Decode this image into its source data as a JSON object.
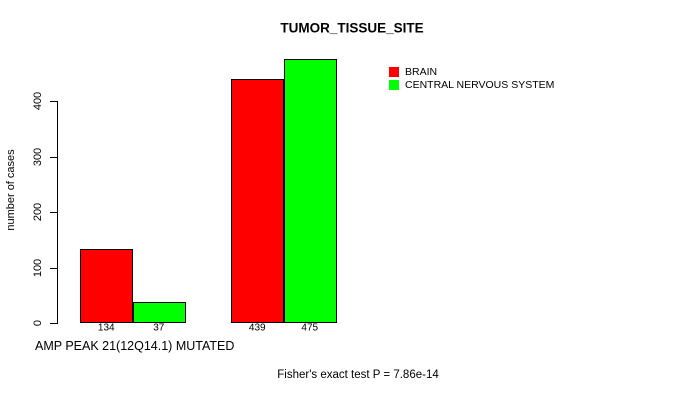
{
  "chart_data": {
    "type": "bar",
    "title": "TUMOR_TISSUE_SITE",
    "ylabel": "number of cases",
    "xlabel": "AMP PEAK 21(12Q14.1) MUTATED",
    "annotation": "Fisher's exact test P = 7.86e-14",
    "series": [
      {
        "name": "BRAIN",
        "color": "#ff0000",
        "values": [
          134,
          439
        ]
      },
      {
        "name": "CENTRAL NERVOUS SYSTEM",
        "color": "#00ff00",
        "values": [
          37,
          475
        ]
      }
    ],
    "bar_value_labels": [
      134,
      37,
      439,
      475
    ],
    "yticks": [
      0,
      100,
      200,
      300,
      400
    ],
    "ylim": [
      0,
      475
    ],
    "grid": false,
    "legend_position": "top-right",
    "bar_border_color": "#000000",
    "background_color": "#ffffff"
  }
}
